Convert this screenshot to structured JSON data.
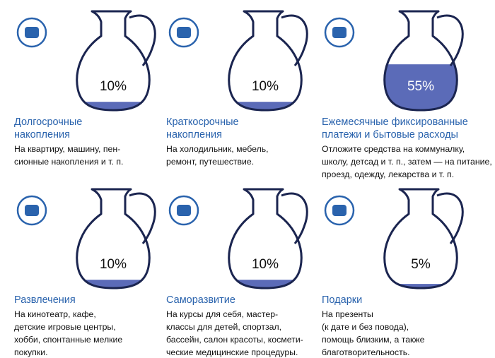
{
  "items": [
    {
      "value": 10,
      "value_label": "10%",
      "title": [
        "Долгосрочные",
        "накопления"
      ],
      "description": [
        "На квартиру, машину, пен-",
        "сионные накопления и т. п."
      ]
    },
    {
      "value": 10,
      "value_label": "10%",
      "title": [
        "Краткосрочные",
        "накопления"
      ],
      "description": [
        "На холодильник, мебель,",
        "ремонт, путешествие."
      ]
    },
    {
      "value": 55,
      "value_label": "55%",
      "title": [
        "Ежемесячные фиксированные",
        "платежи и бытовые расходы"
      ],
      "description": [
        "Отложите средства на коммуналку,",
        "школу, детсад и т. п., затем — на питание,",
        "проезд, одежду, лекарства и т. п."
      ]
    },
    {
      "value": 10,
      "value_label": "10%",
      "title": [
        "Развлечения"
      ],
      "description": [
        "На кинотеатр, кафе,",
        "детские игровые центры,",
        "хобби, спонтанные мелкие",
        "покупки."
      ]
    },
    {
      "value": 10,
      "value_label": "10%",
      "title": [
        "Саморазвитие"
      ],
      "description": [
        "На курсы для себя, мастер-",
        "классы для детей, спортзал,",
        "бассейн, салон красоты, космети-",
        "ческие медицинские процедуры."
      ]
    },
    {
      "value": 5,
      "value_label": "5%",
      "title": [
        "Подарки"
      ],
      "description": [
        "На презенты",
        "(к дате и без повода),",
        "помощь близким, а также",
        "благотворительность."
      ]
    }
  ]
}
